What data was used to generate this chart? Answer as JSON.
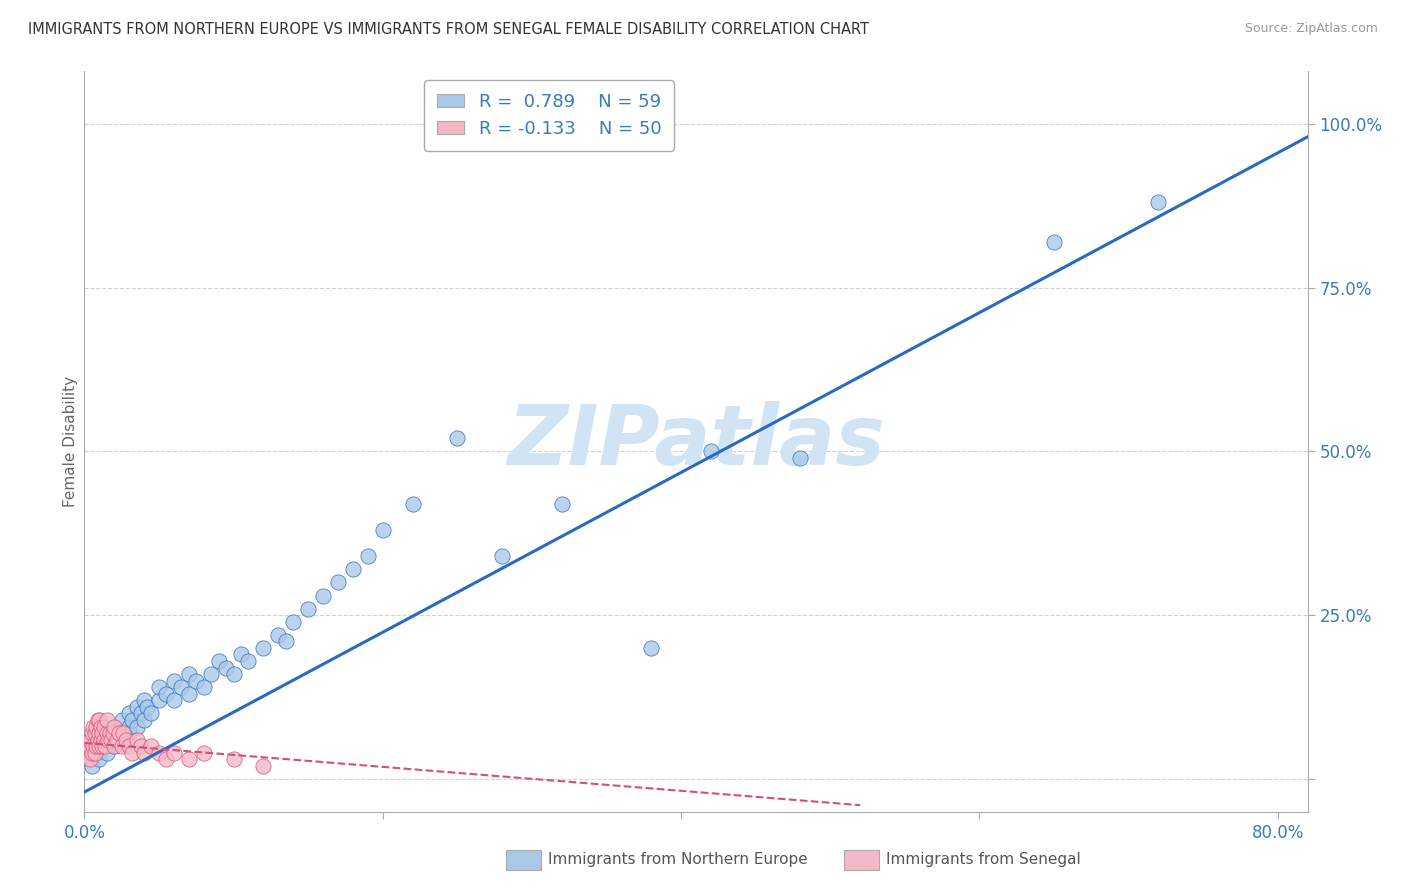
{
  "title": "IMMIGRANTS FROM NORTHERN EUROPE VS IMMIGRANTS FROM SENEGAL FEMALE DISABILITY CORRELATION CHART",
  "source": "Source: ZipAtlas.com",
  "ylabel": "Female Disability",
  "blue_R": 0.789,
  "blue_N": 59,
  "pink_R": -0.133,
  "pink_N": 50,
  "blue_label": "Immigrants from Northern Europe",
  "pink_label": "Immigrants from Senegal",
  "blue_color": "#aac8e8",
  "pink_color": "#f5b8c8",
  "blue_line_color": "#2a6abf",
  "pink_line_color": "#d45070",
  "watermark": "ZIPatlas",
  "xlim": [
    0.0,
    0.82
  ],
  "ylim": [
    -0.05,
    1.08
  ],
  "blue_trend_x": [
    0.0,
    0.82
  ],
  "blue_trend_y": [
    -0.02,
    0.98
  ],
  "pink_trend_x": [
    0.0,
    0.52
  ],
  "pink_trend_y": [
    0.055,
    -0.04
  ],
  "yticks": [
    0.0,
    0.25,
    0.5,
    0.75,
    1.0
  ],
  "ytick_labels": [
    "",
    "25.0%",
    "50.0%",
    "75.0%",
    "100.0%"
  ],
  "xtick_positions": [
    0.0,
    0.2,
    0.4,
    0.6,
    0.8
  ],
  "blue_x": [
    0.005,
    0.008,
    0.01,
    0.01,
    0.012,
    0.015,
    0.015,
    0.018,
    0.02,
    0.02,
    0.022,
    0.025,
    0.025,
    0.03,
    0.03,
    0.03,
    0.032,
    0.035,
    0.035,
    0.038,
    0.04,
    0.04,
    0.042,
    0.045,
    0.05,
    0.05,
    0.055,
    0.06,
    0.06,
    0.065,
    0.07,
    0.07,
    0.075,
    0.08,
    0.085,
    0.09,
    0.095,
    0.1,
    0.105,
    0.11,
    0.12,
    0.13,
    0.135,
    0.14,
    0.15,
    0.16,
    0.17,
    0.18,
    0.19,
    0.2,
    0.22,
    0.25,
    0.28,
    0.32,
    0.38,
    0.42,
    0.48,
    0.65,
    0.72
  ],
  "blue_y": [
    0.02,
    0.04,
    0.03,
    0.06,
    0.05,
    0.04,
    0.07,
    0.06,
    0.05,
    0.08,
    0.07,
    0.06,
    0.09,
    0.07,
    0.08,
    0.1,
    0.09,
    0.08,
    0.11,
    0.1,
    0.09,
    0.12,
    0.11,
    0.1,
    0.12,
    0.14,
    0.13,
    0.12,
    0.15,
    0.14,
    0.13,
    0.16,
    0.15,
    0.14,
    0.16,
    0.18,
    0.17,
    0.16,
    0.19,
    0.18,
    0.2,
    0.22,
    0.21,
    0.24,
    0.26,
    0.28,
    0.3,
    0.32,
    0.34,
    0.38,
    0.42,
    0.52,
    0.34,
    0.42,
    0.2,
    0.5,
    0.49,
    0.82,
    0.88
  ],
  "pink_x": [
    0.002,
    0.003,
    0.004,
    0.004,
    0.005,
    0.005,
    0.006,
    0.006,
    0.007,
    0.007,
    0.008,
    0.008,
    0.009,
    0.009,
    0.01,
    0.01,
    0.01,
    0.011,
    0.011,
    0.012,
    0.012,
    0.013,
    0.013,
    0.014,
    0.015,
    0.015,
    0.016,
    0.017,
    0.018,
    0.019,
    0.02,
    0.02,
    0.022,
    0.023,
    0.025,
    0.026,
    0.028,
    0.03,
    0.032,
    0.035,
    0.038,
    0.04,
    0.045,
    0.05,
    0.055,
    0.06,
    0.07,
    0.08,
    0.1,
    0.12
  ],
  "pink_y": [
    0.04,
    0.05,
    0.03,
    0.06,
    0.04,
    0.07,
    0.05,
    0.08,
    0.04,
    0.07,
    0.05,
    0.08,
    0.06,
    0.09,
    0.05,
    0.07,
    0.09,
    0.06,
    0.08,
    0.05,
    0.07,
    0.06,
    0.08,
    0.05,
    0.07,
    0.09,
    0.06,
    0.07,
    0.06,
    0.07,
    0.05,
    0.08,
    0.06,
    0.07,
    0.05,
    0.07,
    0.06,
    0.05,
    0.04,
    0.06,
    0.05,
    0.04,
    0.05,
    0.04,
    0.03,
    0.04,
    0.03,
    0.04,
    0.03,
    0.02
  ]
}
